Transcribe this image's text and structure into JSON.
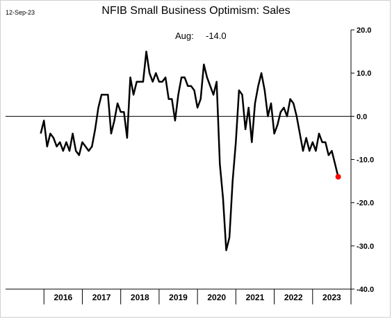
{
  "date_stamp": "12-Sep-23",
  "annotation": {
    "label": "Aug:",
    "value": "-14.0"
  },
  "colors": {
    "line": "#000000",
    "last_point": "#ff0000",
    "zero_line": "#000000"
  },
  "chart_data": {
    "type": "line",
    "title": "NFIB Small Business Optimism: Sales",
    "xlabel": "",
    "ylabel": "",
    "ylim": [
      -40,
      20
    ],
    "y_ticks": [
      "20.0",
      "10.0",
      "0.0",
      "-10.0",
      "-20.0",
      "-30.0",
      "-40.0"
    ],
    "y_tick_values": [
      20,
      10,
      0,
      -10,
      -20,
      -30,
      -40
    ],
    "year_labels": [
      "2016",
      "2017",
      "2018",
      "2019",
      "2020",
      "2021",
      "2022",
      "2023"
    ],
    "x_start": "2015-12",
    "x_end": "2023-08",
    "grid": false,
    "legend": "none",
    "values": [
      -4,
      -1,
      -7,
      -4,
      -5,
      -7,
      -6,
      -8,
      -6,
      -8,
      -4,
      -8,
      -9,
      -6,
      -7,
      -8,
      -7,
      -3,
      2,
      5,
      5,
      5,
      -4,
      -1,
      3,
      1,
      1,
      -5,
      9,
      5,
      8,
      8,
      8,
      15,
      10,
      8,
      10,
      8,
      8,
      9,
      4,
      4,
      -1,
      5,
      9,
      9,
      7,
      7,
      6,
      2,
      4,
      12,
      9,
      7,
      5,
      8,
      -11,
      -19,
      -31,
      -28,
      -15,
      -6,
      6,
      5,
      -3,
      2,
      -6,
      3,
      7,
      10,
      6,
      0,
      3,
      -4,
      -2,
      1,
      2,
      0,
      4,
      3,
      0,
      -4,
      -8,
      -5,
      -8,
      -6,
      -8,
      -4,
      -6,
      -6,
      -9,
      -8,
      -11,
      -14
    ],
    "last_point_label": "Aug"
  }
}
